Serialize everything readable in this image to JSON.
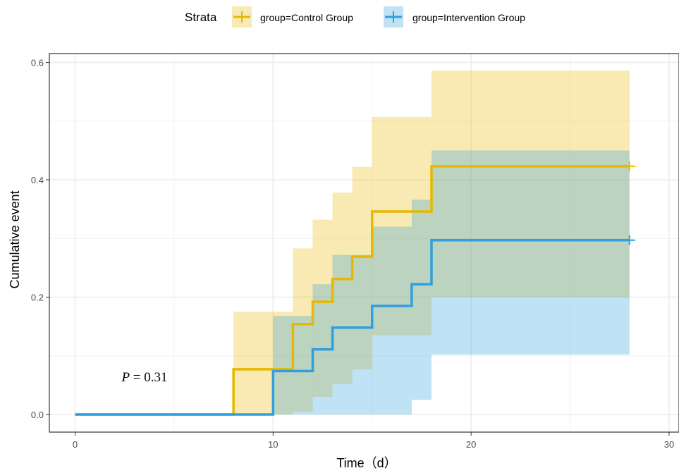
{
  "chart_data": {
    "type": "line",
    "title": "",
    "xlabel": "Time（d）",
    "ylabel": "Cumulative event",
    "xlim": [
      -1.3,
      30.5
    ],
    "ylim": [
      -0.03,
      0.615
    ],
    "x_ticks": [
      0,
      10,
      20,
      30
    ],
    "y_ticks": [
      0.0,
      0.2,
      0.4,
      0.6
    ],
    "x_tick_labels": [
      "0",
      "10",
      "20",
      "30"
    ],
    "y_tick_labels": [
      "0.0",
      "0.2",
      "0.4",
      "0.6"
    ],
    "grid": true,
    "legend_title": "Strata",
    "legend_position": "top",
    "annotation": {
      "label": "P",
      "text": " = 0.31",
      "x": 4.2,
      "y": 0.065
    },
    "series": [
      {
        "name": "group=Control Group",
        "color": "#E7B800",
        "censor_mark": {
          "x": 28,
          "y": 0.423
        },
        "steps": [
          {
            "x": 0,
            "y": 0.0,
            "lower": 0.0,
            "upper": 0.0
          },
          {
            "x": 8,
            "y": 0.077,
            "lower": 0.0,
            "upper": 0.175
          },
          {
            "x": 11,
            "y": 0.154,
            "lower": 0.005,
            "upper": 0.283
          },
          {
            "x": 12,
            "y": 0.192,
            "lower": 0.03,
            "upper": 0.332
          },
          {
            "x": 13,
            "y": 0.231,
            "lower": 0.052,
            "upper": 0.378
          },
          {
            "x": 14,
            "y": 0.269,
            "lower": 0.077,
            "upper": 0.422
          },
          {
            "x": 15,
            "y": 0.346,
            "lower": 0.135,
            "upper": 0.507
          },
          {
            "x": 18,
            "y": 0.423,
            "lower": 0.2,
            "upper": 0.586
          }
        ],
        "end_x": 28
      },
      {
        "name": "group=Intervention Group",
        "color": "#2E9FDF",
        "censor_mark": {
          "x": 28,
          "y": 0.297
        },
        "steps": [
          {
            "x": 0,
            "y": 0.0,
            "lower": 0.0,
            "upper": 0.0
          },
          {
            "x": 10,
            "y": 0.074,
            "lower": 0.0,
            "upper": 0.168
          },
          {
            "x": 12,
            "y": 0.111,
            "lower": 0.0,
            "upper": 0.222
          },
          {
            "x": 13,
            "y": 0.148,
            "lower": 0.0,
            "upper": 0.272
          },
          {
            "x": 15,
            "y": 0.185,
            "lower": 0.0,
            "upper": 0.32
          },
          {
            "x": 17,
            "y": 0.222,
            "lower": 0.025,
            "upper": 0.366
          },
          {
            "x": 18,
            "y": 0.297,
            "lower": 0.102,
            "upper": 0.45
          }
        ],
        "end_x": 28
      }
    ]
  }
}
